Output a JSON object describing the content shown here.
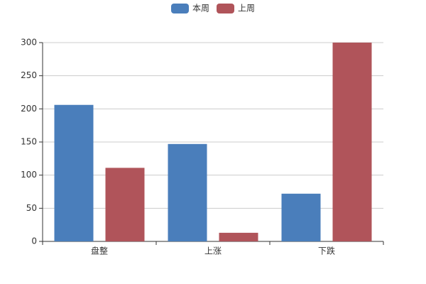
{
  "chart_data": {
    "type": "bar",
    "categories": [
      "盘整",
      "上涨",
      "下跌"
    ],
    "series": [
      {
        "name": "本周",
        "color": "#4a7ebb",
        "values": [
          206,
          147,
          72
        ]
      },
      {
        "name": "上周",
        "color": "#b0545a",
        "values": [
          111,
          13,
          300
        ]
      }
    ],
    "ylim": [
      0,
      300
    ],
    "yticks": [
      0,
      50,
      100,
      150,
      200,
      250,
      300
    ],
    "grid": true,
    "legend": "top"
  }
}
